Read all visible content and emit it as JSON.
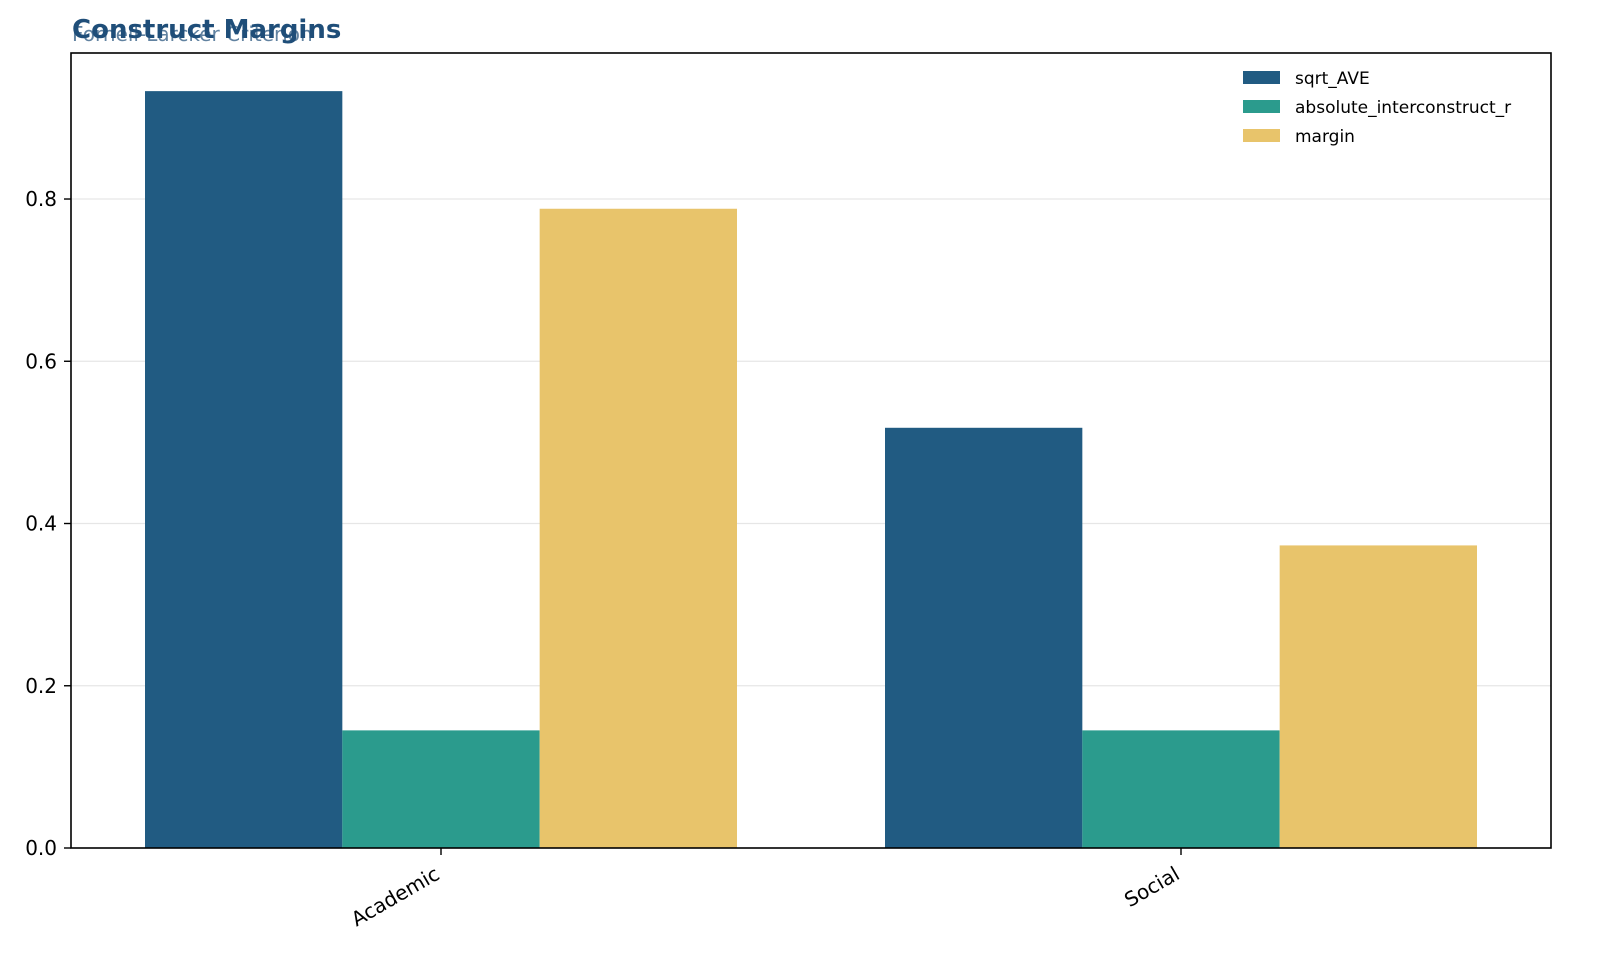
{
  "chart_data": {
    "type": "bar",
    "title": "Construct Margins",
    "subtitle": "Fornell-Larcker Criterion",
    "xlabel": "",
    "ylabel": "",
    "categories": [
      "Academic",
      "Social"
    ],
    "series": [
      {
        "name": "sqrt_AVE",
        "values": [
          0.933,
          0.518
        ],
        "color": "#215b82"
      },
      {
        "name": "absolute_interconstruct_r",
        "values": [
          0.145,
          0.145
        ],
        "color": "#2b9b8d"
      },
      {
        "name": "margin",
        "values": [
          0.788,
          0.373
        ],
        "color": "#e8c46b"
      }
    ],
    "ylim": [
      0,
      0.98
    ],
    "yticks": [
      0.0,
      0.2,
      0.4,
      0.6,
      0.8
    ],
    "ytick_labels": [
      "0.0",
      "0.2",
      "0.4",
      "0.6",
      "0.8"
    ],
    "x_tick_rotation_deg": 30,
    "grid": "y",
    "legend_position": "top-right"
  }
}
